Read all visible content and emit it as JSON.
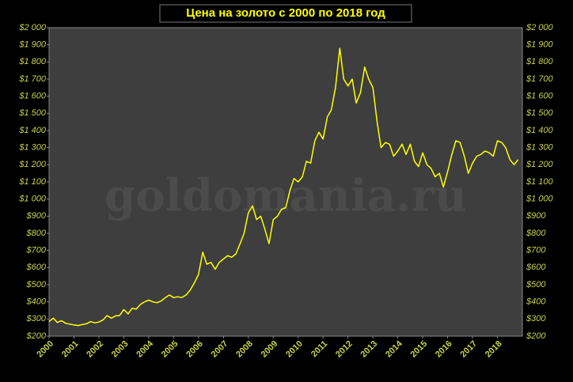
{
  "chart_data": {
    "type": "line",
    "title": "Цена на золото с 2000 по 2018 год",
    "watermark": "goldomania.ru",
    "color": "#ffff00",
    "x": [
      2000,
      2000.17,
      2000.33,
      2000.5,
      2000.67,
      2000.83,
      2001,
      2001.17,
      2001.33,
      2001.5,
      2001.67,
      2001.83,
      2002,
      2002.17,
      2002.33,
      2002.5,
      2002.67,
      2002.83,
      2003,
      2003.17,
      2003.33,
      2003.5,
      2003.67,
      2003.83,
      2004,
      2004.17,
      2004.33,
      2004.5,
      2004.67,
      2004.83,
      2005,
      2005.17,
      2005.33,
      2005.5,
      2005.67,
      2005.83,
      2006,
      2006.17,
      2006.33,
      2006.5,
      2006.67,
      2006.83,
      2007,
      2007.17,
      2007.33,
      2007.5,
      2007.67,
      2007.83,
      2008,
      2008.17,
      2008.33,
      2008.5,
      2008.67,
      2008.83,
      2009,
      2009.17,
      2009.33,
      2009.5,
      2009.67,
      2009.83,
      2010,
      2010.17,
      2010.33,
      2010.5,
      2010.67,
      2010.83,
      2011,
      2011.17,
      2011.33,
      2011.5,
      2011.67,
      2011.83,
      2012,
      2012.17,
      2012.33,
      2012.5,
      2012.67,
      2012.83,
      2013,
      2013.17,
      2013.33,
      2013.5,
      2013.67,
      2013.83,
      2014,
      2014.17,
      2014.33,
      2014.5,
      2014.67,
      2014.83,
      2015,
      2015.17,
      2015.33,
      2015.5,
      2015.67,
      2015.83,
      2016,
      2016.17,
      2016.33,
      2016.5,
      2016.67,
      2016.83,
      2017,
      2017.17,
      2017.33,
      2017.5,
      2017.67,
      2017.83,
      2018,
      2018.17,
      2018.33,
      2018.5,
      2018.67,
      2018.83
    ],
    "values": [
      285,
      305,
      280,
      290,
      275,
      270,
      265,
      262,
      268,
      272,
      285,
      277,
      282,
      295,
      320,
      305,
      318,
      320,
      355,
      330,
      362,
      358,
      385,
      400,
      410,
      400,
      395,
      405,
      425,
      440,
      425,
      430,
      425,
      440,
      470,
      510,
      560,
      690,
      620,
      630,
      590,
      630,
      650,
      670,
      660,
      680,
      740,
      800,
      920,
      960,
      880,
      900,
      820,
      740,
      880,
      900,
      940,
      950,
      1050,
      1120,
      1100,
      1130,
      1220,
      1210,
      1340,
      1390,
      1350,
      1480,
      1520,
      1650,
      1880,
      1700,
      1660,
      1700,
      1560,
      1620,
      1770,
      1700,
      1650,
      1450,
      1300,
      1330,
      1320,
      1250,
      1280,
      1320,
      1260,
      1320,
      1220,
      1190,
      1270,
      1200,
      1180,
      1130,
      1150,
      1070,
      1160,
      1260,
      1340,
      1330,
      1250,
      1150,
      1210,
      1250,
      1260,
      1280,
      1270,
      1250,
      1340,
      1330,
      1300,
      1230,
      1200,
      1230
    ],
    "xlim": [
      2000,
      2019
    ],
    "xticks": [
      2000,
      2001,
      2002,
      2003,
      2004,
      2005,
      2006,
      2007,
      2008,
      2009,
      2010,
      2011,
      2012,
      2013,
      2014,
      2015,
      2016,
      2017,
      2018
    ],
    "ylim": [
      200,
      2000
    ],
    "yticks": [
      {
        "value": 200,
        "label": "$200"
      },
      {
        "value": 300,
        "label": "$300"
      },
      {
        "value": 400,
        "label": "$400"
      },
      {
        "value": 500,
        "label": "$500"
      },
      {
        "value": 600,
        "label": "$600"
      },
      {
        "value": 700,
        "label": "$700"
      },
      {
        "value": 800,
        "label": "$800"
      },
      {
        "value": 900,
        "label": "$900"
      },
      {
        "value": 1000,
        "label": "$1 000"
      },
      {
        "value": 1100,
        "label": "$1 100"
      },
      {
        "value": 1200,
        "label": "$1 200"
      },
      {
        "value": 1300,
        "label": "$1 300"
      },
      {
        "value": 1400,
        "label": "$1 400"
      },
      {
        "value": 1500,
        "label": "$1 500"
      },
      {
        "value": 1600,
        "label": "$1 600"
      },
      {
        "value": 1700,
        "label": "$1 700"
      },
      {
        "value": 1800,
        "label": "$1 800"
      },
      {
        "value": 1900,
        "label": "$1 900"
      },
      {
        "value": 2000,
        "label": "$2 000"
      }
    ]
  }
}
